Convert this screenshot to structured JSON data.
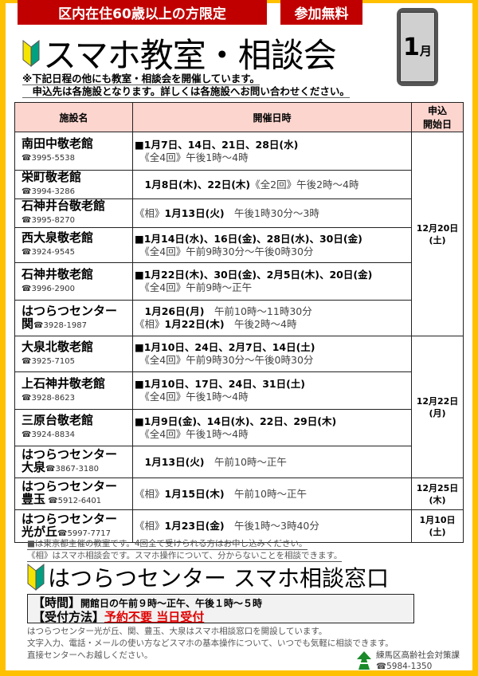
{
  "header": {
    "eligibility": "区内在住60歳以上の方限定",
    "free": "参加無料",
    "title": "スマホ教室・相談会",
    "month_num": "1",
    "month_unit": "月"
  },
  "notes": [
    "※下記日程の他にも教室・相談会を開催しています。",
    "　申込先は各施設となります。詳しくは各施設へお問い合わせください。"
  ],
  "table": {
    "headers": [
      "施設名",
      "開催日時",
      "申込",
      "開始日"
    ],
    "rows": [
      {
        "name": "南田中敬老館",
        "tel": "☎3995-5538",
        "lines": [
          [
            [
              "■1月7日、14日、21日、28日(水)",
              1
            ]
          ],
          [
            [
              "　《全4回》午後1時～4時",
              0
            ]
          ]
        ]
      },
      {
        "name": "栄町敬老館",
        "tel": "☎3994-3286",
        "lines": [
          [
            [
              "　1月8日(木)、22日(木)",
              1
            ],
            [
              "《全2回》午後2時～4時",
              0
            ]
          ]
        ]
      },
      {
        "name": "石神井台敬老館",
        "tel": "☎3995-8270",
        "lines": [
          [
            [
              "《相》",
              0
            ],
            [
              "1月13日(火)",
              1
            ],
            [
              "　午後1時30分～3時",
              0
            ]
          ]
        ]
      },
      {
        "name": "西大泉敬老館",
        "tel": "☎3924-9545",
        "lines": [
          [
            [
              "■1月14日(水)、16日(金)、28日(水)、30日(金)",
              1
            ]
          ],
          [
            [
              "　《全4回》午前9時30分～午後0時30分",
              0
            ]
          ]
        ]
      },
      {
        "name": "石神井敬老館",
        "tel": "☎3996-2900",
        "lines": [
          [
            [
              "■1月22日(木)、30日(金)、2月5日(木)、20日(金)",
              1
            ]
          ],
          [
            [
              "　《全4回》午前9時～正午",
              0
            ]
          ]
        ]
      },
      {
        "name": "はつらつセンター",
        "name2": "関",
        "tel": "☎3928-1987",
        "lines": [
          [
            [
              "　1月26日(月)",
              1
            ],
            [
              "　午前10時～11時30分",
              0
            ]
          ],
          [
            [
              "《相》",
              0
            ],
            [
              "1月22日(木)",
              1
            ],
            [
              "　午後2時～4時",
              0
            ]
          ]
        ]
      },
      {
        "name": "大泉北敬老館",
        "tel": "☎3925-7105",
        "lines": [
          [
            [
              "■1月10日、24日、2月7日、14日(土)",
              1
            ]
          ],
          [
            [
              "　《全4回》午前9時30分～午後0時30分",
              0
            ]
          ]
        ]
      },
      {
        "name": "上石神井敬老館",
        "tel": "☎3928-8623",
        "lines": [
          [
            [
              "■1月10日、17日、24日、31日(土)",
              1
            ]
          ],
          [
            [
              "　《全4回》午後1時～4時",
              0
            ]
          ]
        ]
      },
      {
        "name": "三原台敬老館",
        "tel": "☎3924-8834",
        "lines": [
          [
            [
              "■1月9日(金)、14日(水)、22日、29日(木)",
              1
            ]
          ],
          [
            [
              "　《全4回》午後1時～4時",
              0
            ]
          ]
        ]
      },
      {
        "name": "はつらつセンター",
        "name2": "大泉",
        "tel": "☎3867-3180",
        "lines": [
          [
            [
              "　1月13日(火)",
              1
            ],
            [
              "　午前10時～正午",
              0
            ]
          ]
        ]
      },
      {
        "name": "はつらつセンター",
        "name2": "豊玉",
        "tel": " ☎5912-6401",
        "lines": [
          [
            [
              "《相》",
              0
            ],
            [
              "1月15日(木)",
              1
            ],
            [
              "　午前10時～正午",
              0
            ]
          ]
        ]
      },
      {
        "name": "はつらつセンター",
        "name2": "光が丘",
        "tel": "☎5997-7717",
        "lines": [
          [
            [
              "《相》",
              0
            ],
            [
              "1月23日(金)",
              1
            ],
            [
              "　午後1時～3時40分",
              0
            ]
          ]
        ]
      }
    ],
    "start_dates": [
      {
        "date": "12月20日",
        "day": "(土)",
        "rows": 6
      },
      {
        "date": "12月22日",
        "day": "(月)",
        "rows": 4
      },
      {
        "date": "12月25日",
        "day": "(木)",
        "rows": 1
      },
      {
        "date": "1月10日",
        "day": "(土)",
        "rows": 1
      }
    ]
  },
  "footnotes": [
    "■は東京都主催の教室です。4回全て受けられる方はお申し込みください。",
    "《相》はスマホ相談会です。スマホ操作について、分からないことを相談できます。"
  ],
  "window": {
    "title": "はつらつセンター スマホ相談窓口",
    "time_label": "【時間】",
    "time_value": "開館日の午前９時～正午、午後１時～５時",
    "method_label": "【受付方法】",
    "method_value": "予約不要 当日受付"
  },
  "description": [
    "はつらつセンター光が丘、関、豊玉、大泉はスマホ相談窓口を開設しています。",
    "文字入力、電話・メールの使い方などスマホの基本操作について、いつでも気軽に相談できます。",
    "直接センターへお越しください。"
  ],
  "org": {
    "name": "練馬区高齢社会対策課",
    "tel": "☎5984-1350"
  },
  "colors": {
    "border": "#ffc000",
    "banner": "#c00000",
    "header_bg": "#fcd5ce",
    "highlight": "#e00000"
  }
}
